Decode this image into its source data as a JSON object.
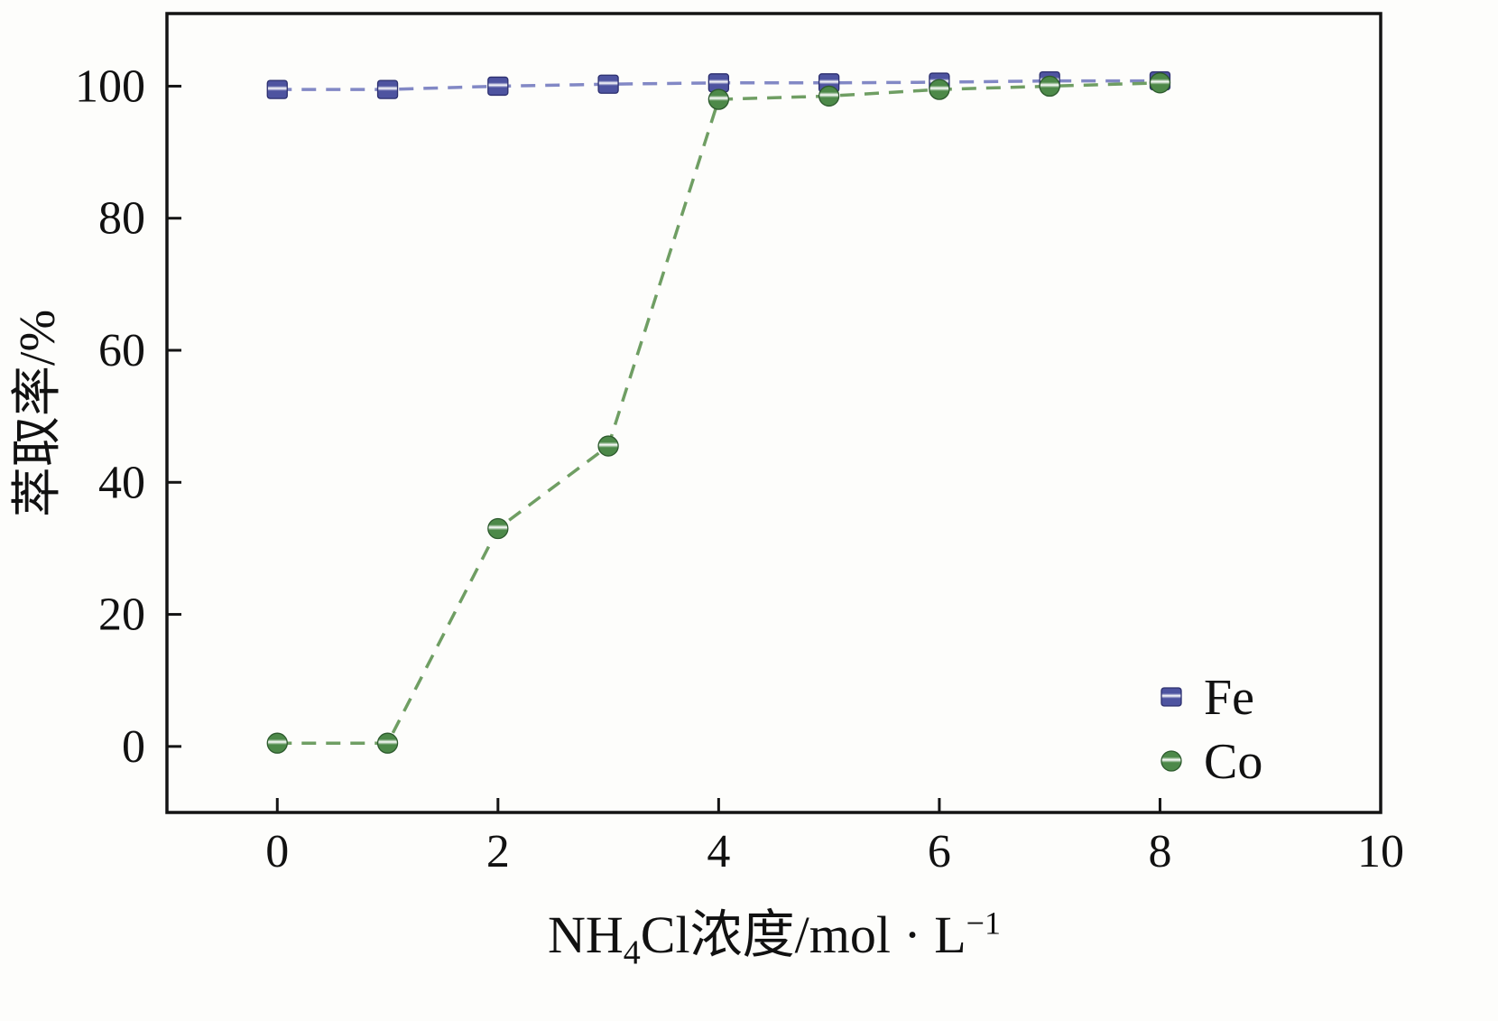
{
  "chart_data": {
    "type": "line",
    "title": "",
    "xlabel": "NH₄Cl浓度/mol · L⁻¹",
    "xlabel_parts": {
      "p1": "NH",
      "sub": "4",
      "p2": "Cl浓度/mol · L",
      "sup": "−1"
    },
    "ylabel": "萃取率/%",
    "x": [
      0,
      1,
      2,
      3,
      4,
      5,
      6,
      7,
      8
    ],
    "series": [
      {
        "name": "Fe",
        "marker": "square",
        "color": "#4e54a0",
        "line_color": "#8288c5",
        "edge": "#2c2f6e",
        "values": [
          99.5,
          99.5,
          100,
          100.3,
          100.5,
          100.5,
          100.6,
          100.8,
          100.8
        ]
      },
      {
        "name": "Co",
        "marker": "circle",
        "color": "#4d8949",
        "line_color": "#6f9e63",
        "edge": "#2d5a2d",
        "values": [
          0.5,
          0.5,
          33,
          45.5,
          98,
          98.5,
          99.5,
          100,
          100.5
        ]
      }
    ],
    "xlim": [
      -1,
      10
    ],
    "ylim": [
      -10,
      111
    ],
    "xticks": [
      0,
      2,
      4,
      6,
      8,
      10
    ],
    "yticks": [
      0,
      20,
      40,
      60,
      80,
      100
    ],
    "line_style": "dashed",
    "grid": false,
    "legend_position": "bottom-right",
    "legend": [
      "Fe",
      "Co"
    ]
  }
}
